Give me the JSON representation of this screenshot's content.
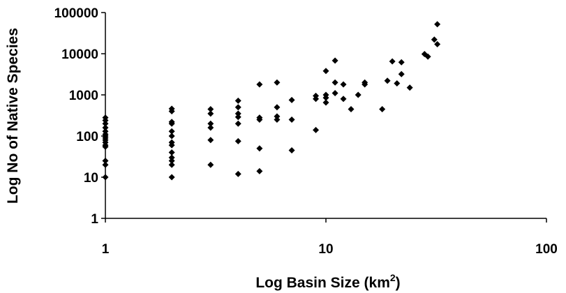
{
  "chart_data": {
    "type": "scatter",
    "xlabel": "Log Basin Size (km",
    "xlabel_superscript": "2",
    "xlabel_suffix": ")",
    "ylabel": "Log No of Native Species",
    "x_scale": "log",
    "y_scale": "log",
    "xlim": [
      1,
      100
    ],
    "ylim": [
      1,
      100000
    ],
    "x_ticks": [
      1,
      10,
      100
    ],
    "x_tick_labels": [
      "1",
      "10",
      "100"
    ],
    "y_ticks": [
      1,
      10,
      100,
      1000,
      10000,
      100000
    ],
    "y_tick_labels": [
      "1",
      "10",
      "100",
      "1000",
      "10000",
      "100000"
    ],
    "grid": false,
    "legend": "none",
    "marker_color": "#000000",
    "series": [
      {
        "points": [
          [
            1,
            10
          ],
          [
            1,
            20
          ],
          [
            1,
            25
          ],
          [
            1,
            55
          ],
          [
            1,
            60
          ],
          [
            1,
            70
          ],
          [
            1,
            80
          ],
          [
            1,
            90
          ],
          [
            1,
            100
          ],
          [
            1,
            110
          ],
          [
            1,
            130
          ],
          [
            1,
            160
          ],
          [
            1,
            200
          ],
          [
            1,
            240
          ],
          [
            1,
            280
          ],
          [
            2,
            10
          ],
          [
            2,
            20
          ],
          [
            2,
            25
          ],
          [
            2,
            30
          ],
          [
            2,
            40
          ],
          [
            2,
            60
          ],
          [
            2,
            70
          ],
          [
            2,
            100
          ],
          [
            2,
            130
          ],
          [
            2,
            200
          ],
          [
            2,
            220
          ],
          [
            2,
            400
          ],
          [
            2,
            460
          ],
          [
            3,
            20
          ],
          [
            3,
            80
          ],
          [
            3,
            160
          ],
          [
            3,
            200
          ],
          [
            3,
            350
          ],
          [
            3,
            450
          ],
          [
            4,
            12
          ],
          [
            4,
            75
          ],
          [
            4,
            200
          ],
          [
            4,
            290
          ],
          [
            4,
            350
          ],
          [
            4,
            500
          ],
          [
            4,
            720
          ],
          [
            5,
            14
          ],
          [
            5,
            50
          ],
          [
            5,
            250
          ],
          [
            5,
            280
          ],
          [
            5,
            1800
          ],
          [
            6,
            250
          ],
          [
            6,
            300
          ],
          [
            6,
            500
          ],
          [
            6,
            2000
          ],
          [
            7,
            45
          ],
          [
            7,
            250
          ],
          [
            7,
            750
          ],
          [
            9,
            140
          ],
          [
            9,
            800
          ],
          [
            9,
            950
          ],
          [
            10,
            650
          ],
          [
            10,
            850
          ],
          [
            10,
            1000
          ],
          [
            10,
            3800
          ],
          [
            11,
            1100
          ],
          [
            11,
            2000
          ],
          [
            11,
            6800
          ],
          [
            12,
            800
          ],
          [
            12,
            1800
          ],
          [
            13,
            450
          ],
          [
            14,
            1000
          ],
          [
            15,
            1800
          ],
          [
            15,
            2000
          ],
          [
            18,
            450
          ],
          [
            19,
            2200
          ],
          [
            20,
            6500
          ],
          [
            21,
            1900
          ],
          [
            22,
            3200
          ],
          [
            22,
            6200
          ],
          [
            24,
            1500
          ],
          [
            28,
            9800
          ],
          [
            29,
            8500
          ],
          [
            31,
            22000
          ],
          [
            32,
            17000
          ],
          [
            32,
            52000
          ]
        ]
      }
    ]
  }
}
